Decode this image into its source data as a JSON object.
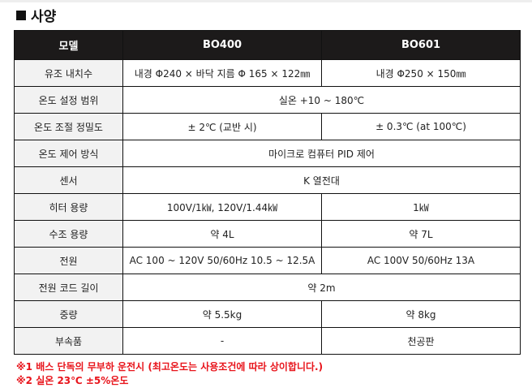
{
  "title": "사양",
  "header": [
    "모델",
    "BO400",
    "BO601"
  ],
  "rows": [
    {
      "label": "유조 내치수",
      "v": [
        "내경 Φ240 × 바닥 지름 Φ 165  × 122㎜",
        "내경 Φ250 × 150㎜"
      ]
    },
    {
      "label": "온도 설정 범위",
      "v": [
        "실온 +10 ~ 180℃"
      ]
    },
    {
      "label": "온도 조절 정밀도",
      "v": [
        "± 2℃ (교반 시)",
        "± 0.3℃ (at 100℃)"
      ]
    },
    {
      "label": "온도 제어 방식",
      "v": [
        "마이크로 컴퓨터 PID 제어"
      ]
    },
    {
      "label": "센서",
      "v": [
        "K 열전대"
      ]
    },
    {
      "label": "히터 용량",
      "v": [
        "100V/1㎾, 120V/1.44㎾",
        "1㎾"
      ]
    },
    {
      "label": "수조 용량",
      "v": [
        "약 4L",
        "약 7L"
      ]
    },
    {
      "label": "전원",
      "v": [
        "AC 100 ~ 120V 50/60Hz 10.5 ~ 12.5A",
        "AC 100V 50/60Hz 13A"
      ]
    },
    {
      "label": "전원 코드 길이",
      "v": [
        "약 2m"
      ]
    },
    {
      "label": "중량",
      "v": [
        "약 5.5kg",
        "약 8kg"
      ]
    },
    {
      "label": "부속품",
      "v": [
        "-",
        "천공판"
      ]
    }
  ],
  "notes": [
    "※1 배스 단독의 무부하 운전시 (최고온도는 사용조건에 따라 상이합니다.)",
    "※2 실온 23℃ ±5%온도"
  ]
}
